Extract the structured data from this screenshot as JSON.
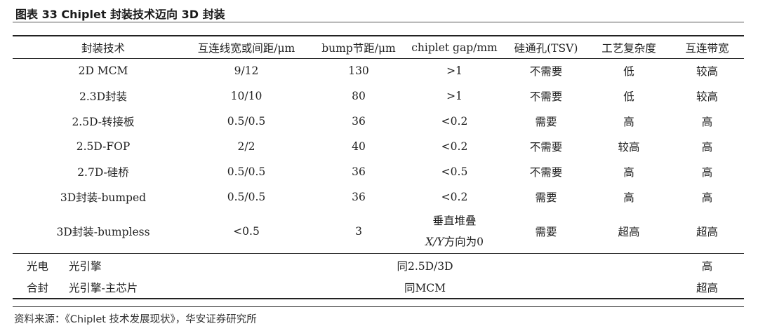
{
  "figure": {
    "title": "图表 33 Chiplet 封装技术迈向 3D 封装",
    "source": "资料来源：《Chiplet 技术发展现状》，华安证券研究所"
  },
  "table": {
    "headers": [
      "封装技术",
      "互连线宽或间距/μm",
      "bump节距/μm",
      "chiplet gap/mm",
      "硅通孔(TSV)",
      "工艺复杂度",
      "互连带宽"
    ],
    "rows": [
      [
        "2D MCM",
        "9/12",
        "130",
        ">1",
        "不需要",
        "低",
        "较高"
      ],
      [
        "2.3D封装",
        "10/10",
        "80",
        ">1",
        "不需要",
        "低",
        "较高"
      ],
      [
        "2.5D-转接板",
        "0.5/0.5",
        "36",
        "<0.2",
        "需要",
        "高",
        "高"
      ],
      [
        "2.5D-FOP",
        "2/2",
        "40",
        "<0.2",
        "不需要",
        "较高",
        "高"
      ],
      [
        "2.7D-硅桥",
        "0.5/0.5",
        "36",
        "<0.5",
        "不需要",
        "高",
        "高"
      ],
      [
        "3D封装-bumped",
        "0.5/0.5",
        "36",
        "<0.2",
        "需要",
        "高",
        "高"
      ],
      [
        "3D封装-bumpless",
        "<0.5",
        "3",
        "",
        "需要",
        "超高",
        "超高"
      ]
    ],
    "bumpless_gap_line1": "垂直堆叠",
    "bumpless_gap_line2_xy": "X/Y",
    "bumpless_gap_line2_rest": "方向为0",
    "bottom_rows": [
      {
        "category": "光电",
        "sub": "光引擎",
        "span_value": "同2.5D/3D",
        "bandwidth": "高"
      },
      {
        "category": "合封",
        "sub": "光引擎-主芯片",
        "span_value": "同MCM",
        "bandwidth": "超高"
      }
    ]
  }
}
